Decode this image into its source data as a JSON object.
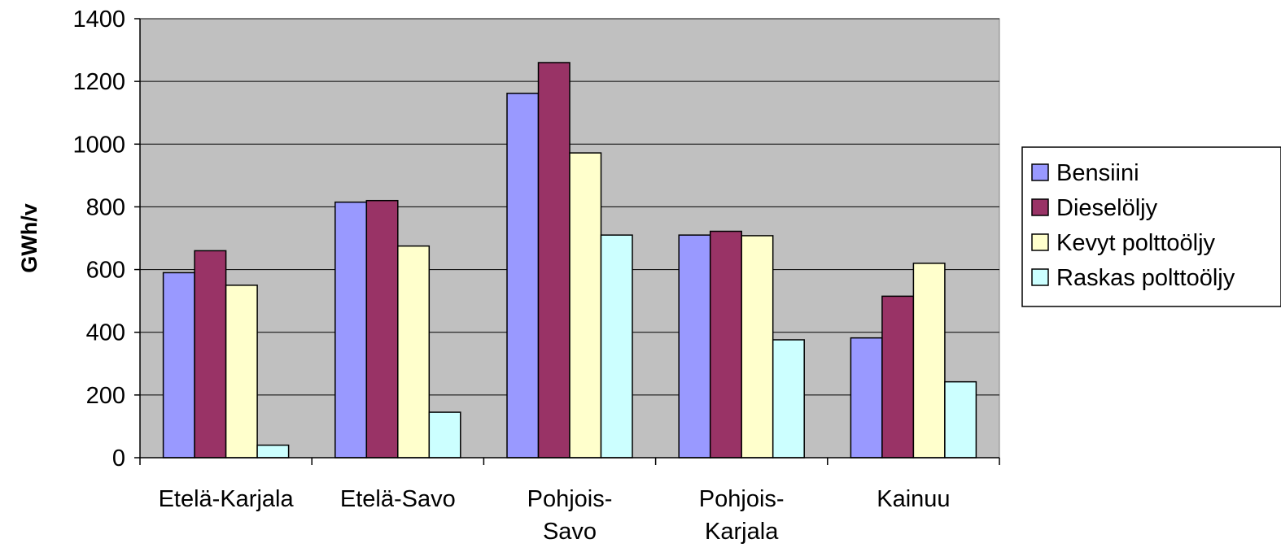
{
  "chart_data": {
    "type": "bar",
    "title": "",
    "xlabel": "",
    "ylabel": "GWh/v",
    "ylim": [
      0,
      1400
    ],
    "yticks": [
      0,
      200,
      400,
      600,
      800,
      1000,
      1200,
      1400
    ],
    "grid": true,
    "legend_position": "right",
    "plot_background": "#C0C0C0",
    "categories": [
      [
        "Etelä-Karjala"
      ],
      [
        "Etelä-Savo"
      ],
      [
        "Pohjois-",
        "Savo"
      ],
      [
        "Pohjois-",
        "Karjala"
      ],
      [
        "Kainuu"
      ]
    ],
    "series": [
      {
        "name": "Bensiini",
        "color": "#9999FF",
        "values": [
          590,
          815,
          1162,
          710,
          382
        ]
      },
      {
        "name": "Dieselöljy",
        "color": "#993366",
        "values": [
          660,
          820,
          1260,
          722,
          515
        ]
      },
      {
        "name": "Kevyt polttoöljy",
        "color": "#FFFFCC",
        "values": [
          550,
          675,
          972,
          708,
          620
        ]
      },
      {
        "name": "Raskas polttoöljy",
        "color": "#CCFFFF",
        "values": [
          40,
          145,
          710,
          376,
          242
        ]
      }
    ]
  }
}
